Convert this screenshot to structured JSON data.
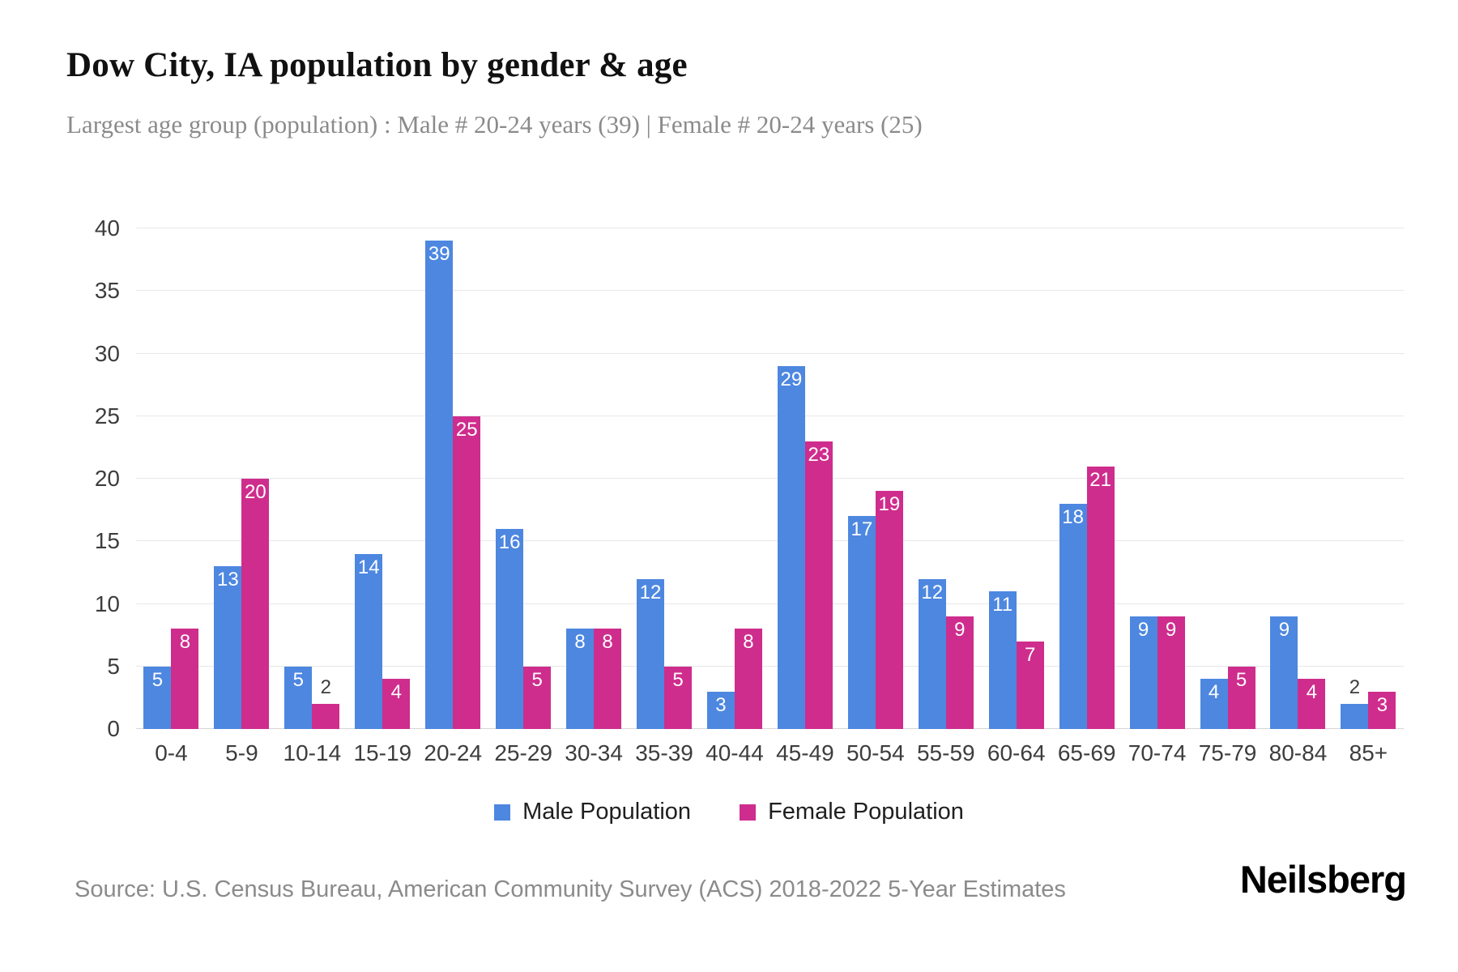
{
  "title": "Dow City, IA population by gender & age",
  "subtitle": "Largest age group (population) : Male # 20-24 years (39) | Female # 20-24 years (25)",
  "source": "Source: U.S. Census Bureau, American Community Survey (ACS) 2018-2022 5-Year Estimates",
  "brand": "Neilsberg",
  "colors": {
    "male": "#4d87e0",
    "female": "#ce2d8d",
    "grid": "#e8e8e8",
    "text_muted": "#8b8b8b",
    "text_axis": "#3d3d3d"
  },
  "chart_data": {
    "type": "bar",
    "title": "Dow City, IA population by gender & age",
    "xlabel": "",
    "ylabel": "",
    "categories": [
      "0-4",
      "5-9",
      "10-14",
      "15-19",
      "20-24",
      "25-29",
      "30-34",
      "35-39",
      "40-44",
      "45-49",
      "50-54",
      "55-59",
      "60-64",
      "65-69",
      "70-74",
      "75-79",
      "80-84",
      "85+"
    ],
    "series": [
      {
        "name": "Male Population",
        "color": "#4d87e0",
        "values": [
          5,
          13,
          5,
          14,
          39,
          16,
          8,
          12,
          3,
          29,
          17,
          12,
          11,
          18,
          9,
          4,
          9,
          2
        ]
      },
      {
        "name": "Female Population",
        "color": "#ce2d8d",
        "values": [
          8,
          20,
          2,
          4,
          25,
          5,
          8,
          5,
          8,
          23,
          19,
          9,
          7,
          21,
          9,
          5,
          4,
          3
        ]
      }
    ],
    "ylim": [
      0,
      40
    ],
    "yticks": [
      0,
      5,
      10,
      15,
      20,
      25,
      30,
      35,
      40
    ],
    "grid": true,
    "legend_position": "bottom",
    "label_outside_threshold": 3
  }
}
